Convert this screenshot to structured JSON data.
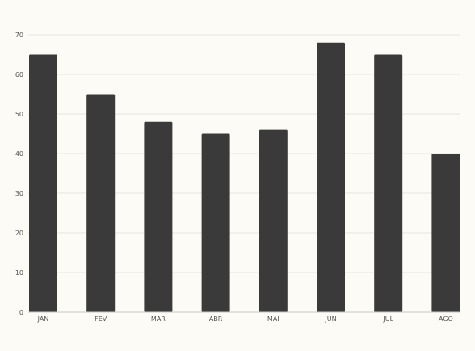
{
  "chart_data": {
    "type": "bar",
    "categories": [
      "JAN",
      "FEV",
      "MAR",
      "ABR",
      "MAI",
      "JUN",
      "JUL",
      "AGO"
    ],
    "values": [
      65,
      55,
      48,
      45,
      46,
      68,
      65,
      40
    ],
    "ylim": [
      0,
      70
    ],
    "yticks": [
      0,
      10,
      20,
      30,
      40,
      50,
      60,
      70
    ],
    "grid": true,
    "colors": {
      "background": "#fdfbf6",
      "bar": "#3a3a3a",
      "grid": "#e6e4de",
      "axis": "#c9c7c2",
      "tick_text": "#555555"
    }
  }
}
